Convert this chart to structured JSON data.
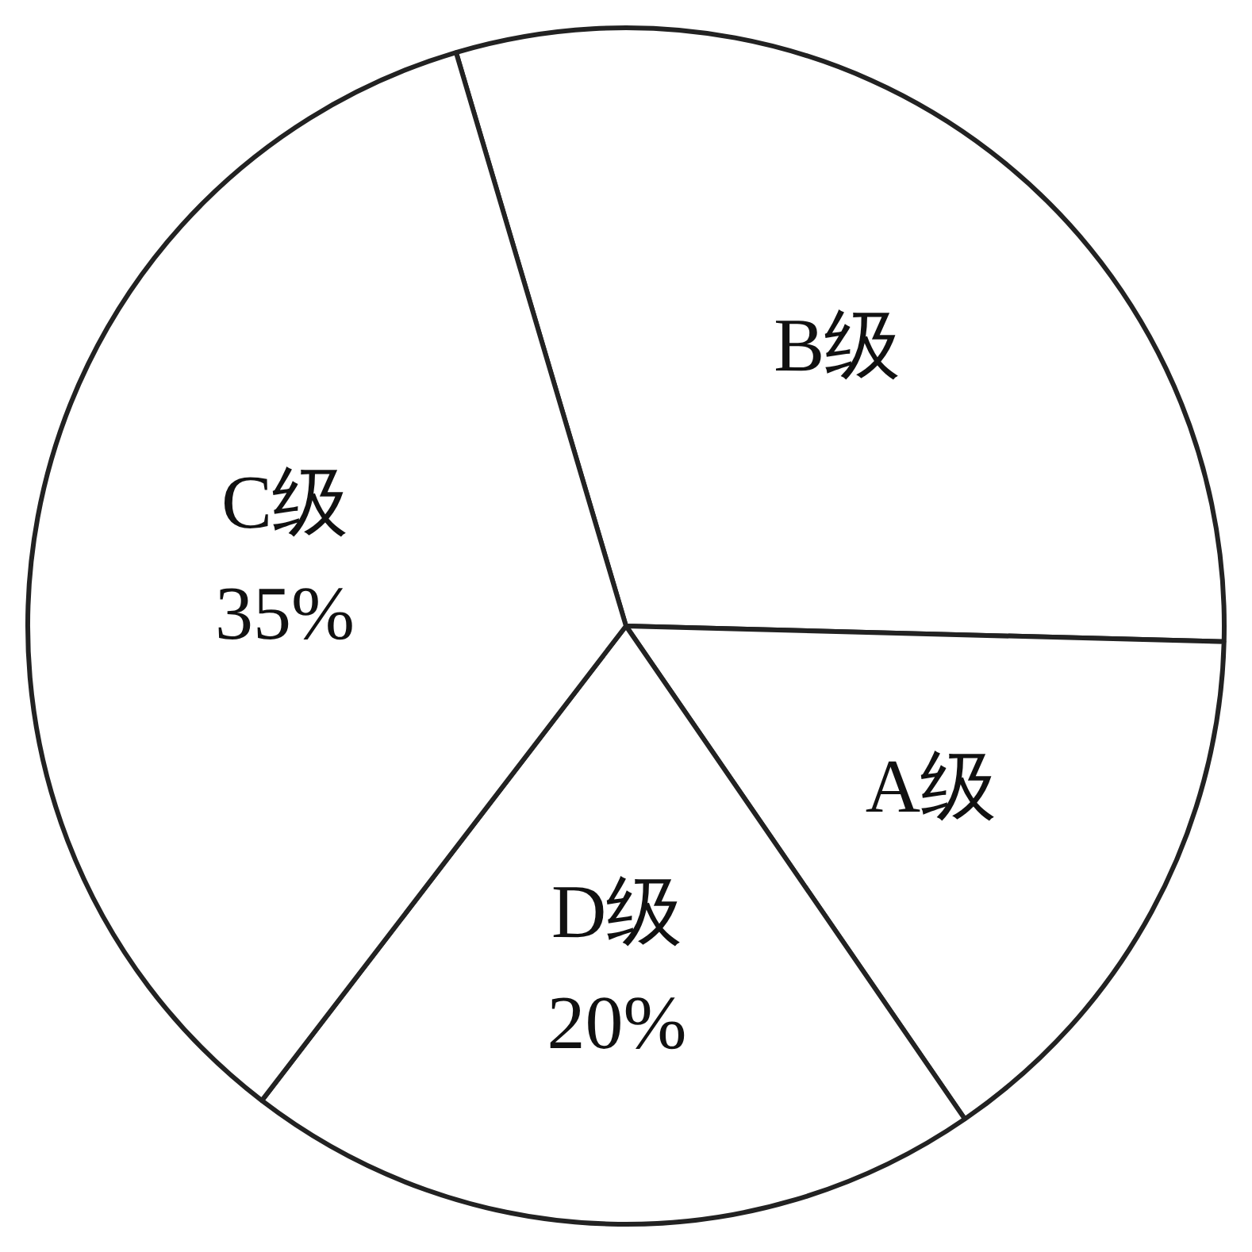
{
  "chart_data": {
    "type": "pie",
    "categories": [
      "B级",
      "A级",
      "D级",
      "C级"
    ],
    "values": [
      30,
      15,
      20,
      35
    ],
    "colors": [
      "#ffffff",
      "#ffffff",
      "#ffffff",
      "#ffffff"
    ],
    "value_labels": [
      null,
      null,
      "20%",
      "35%"
    ],
    "legend": false
  }
}
